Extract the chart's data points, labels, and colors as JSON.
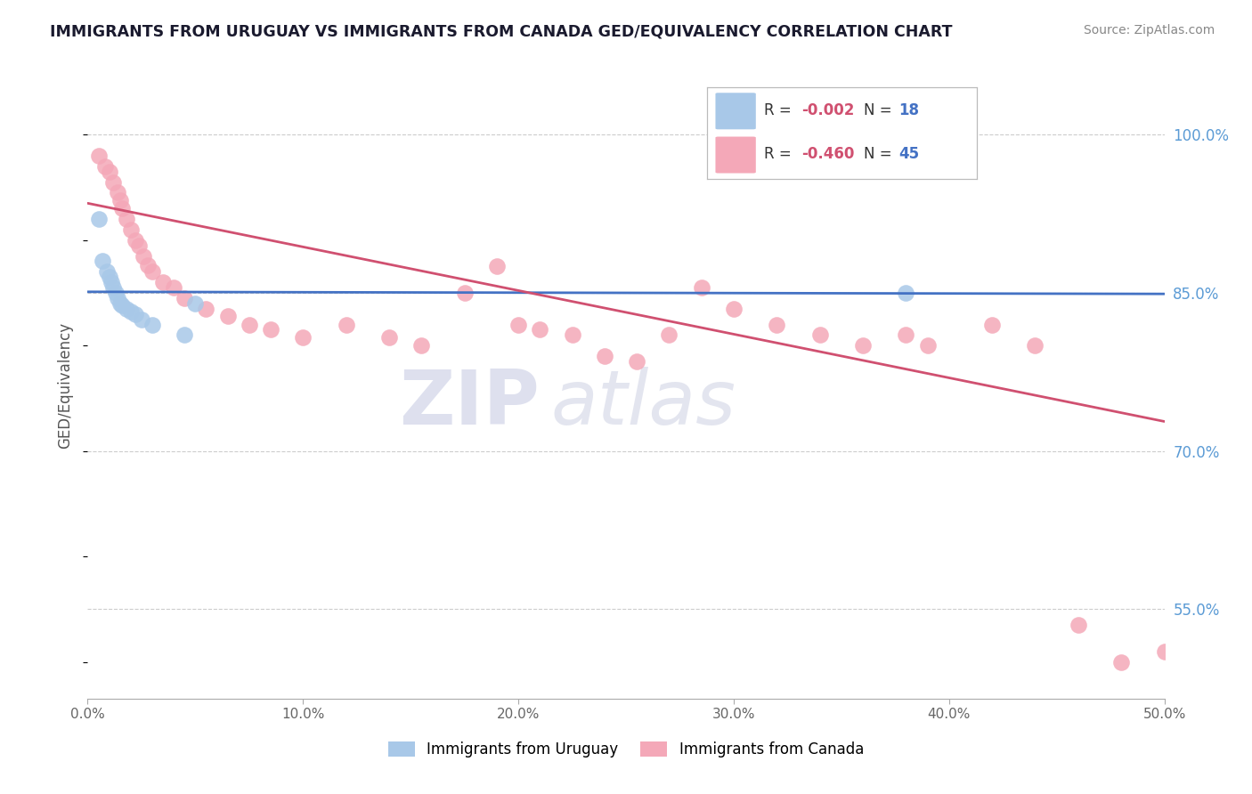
{
  "title": "IMMIGRANTS FROM URUGUAY VS IMMIGRANTS FROM CANADA GED/EQUIVALENCY CORRELATION CHART",
  "source": "Source: ZipAtlas.com",
  "ylabel": "GED/Equivalency",
  "ytick_labels": [
    "100.0%",
    "85.0%",
    "70.0%",
    "55.0%"
  ],
  "ytick_values": [
    1.0,
    0.85,
    0.7,
    0.55
  ],
  "xmin": 0.0,
  "xmax": 0.5,
  "ymin": 0.465,
  "ymax": 1.06,
  "legend_r_uruguay": "-0.002",
  "legend_n_uruguay": "18",
  "legend_r_canada": "-0.460",
  "legend_n_canada": "45",
  "color_uruguay": "#a8c8e8",
  "color_canada": "#f4a8b8",
  "line_color_uruguay": "#4472c4",
  "line_color_canada": "#d05070",
  "r_text_color": "#d05070",
  "n_text_color": "#4472c4",
  "background_color": "#ffffff",
  "uruguay_line_y0": 0.851,
  "uruguay_line_y1": 0.849,
  "canada_line_y0": 0.935,
  "canada_line_y1": 0.728,
  "uruguay_x": [
    0.005,
    0.007,
    0.009,
    0.01,
    0.011,
    0.012,
    0.013,
    0.014,
    0.015,
    0.016,
    0.018,
    0.02,
    0.022,
    0.025,
    0.03,
    0.045,
    0.05,
    0.38
  ],
  "uruguay_y": [
    0.92,
    0.88,
    0.87,
    0.865,
    0.86,
    0.855,
    0.85,
    0.845,
    0.84,
    0.838,
    0.835,
    0.832,
    0.83,
    0.825,
    0.82,
    0.81,
    0.84,
    0.85
  ],
  "canada_x": [
    0.005,
    0.008,
    0.01,
    0.012,
    0.014,
    0.015,
    0.016,
    0.018,
    0.02,
    0.022,
    0.024,
    0.026,
    0.028,
    0.03,
    0.035,
    0.04,
    0.045,
    0.055,
    0.065,
    0.075,
    0.085,
    0.1,
    0.12,
    0.14,
    0.155,
    0.175,
    0.19,
    0.2,
    0.21,
    0.225,
    0.24,
    0.255,
    0.27,
    0.285,
    0.3,
    0.32,
    0.34,
    0.36,
    0.38,
    0.39,
    0.42,
    0.44,
    0.46,
    0.48,
    0.5
  ],
  "canada_y": [
    0.98,
    0.97,
    0.965,
    0.955,
    0.945,
    0.938,
    0.93,
    0.92,
    0.91,
    0.9,
    0.895,
    0.885,
    0.876,
    0.87,
    0.86,
    0.855,
    0.845,
    0.835,
    0.828,
    0.82,
    0.815,
    0.808,
    0.82,
    0.808,
    0.8,
    0.85,
    0.875,
    0.82,
    0.815,
    0.81,
    0.79,
    0.785,
    0.81,
    0.855,
    0.835,
    0.82,
    0.81,
    0.8,
    0.81,
    0.8,
    0.82,
    0.8,
    0.535,
    0.5,
    0.51
  ]
}
